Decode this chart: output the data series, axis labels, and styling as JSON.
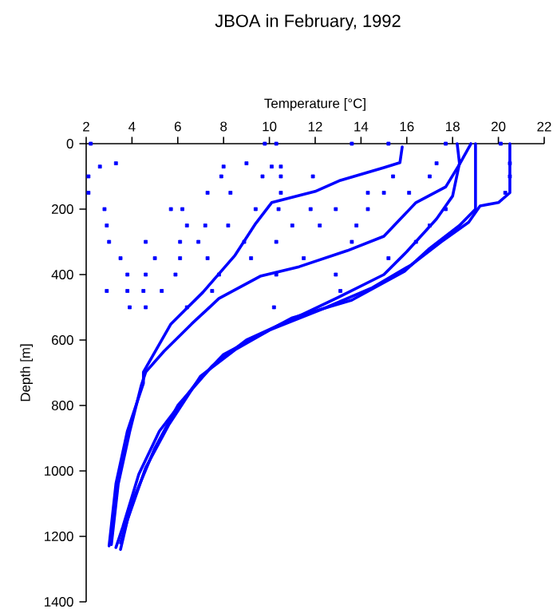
{
  "chart_data": {
    "type": "line",
    "title": "JBOA in February, 1992",
    "xlabel": "Temperature [°C]",
    "ylabel": "Depth [m]",
    "xlim": [
      2,
      22
    ],
    "xticks": [
      2,
      4,
      6,
      8,
      10,
      12,
      14,
      16,
      18,
      20,
      22
    ],
    "ylim": [
      1400,
      0
    ],
    "yticks": [
      0,
      200,
      400,
      600,
      800,
      1000,
      1200,
      1400
    ],
    "series": [
      {
        "color": "#0000ff",
        "x": [
          15.8,
          15.7,
          15.0,
          13.1,
          12.0,
          10.1,
          9.4,
          8.5,
          7.1,
          5.7,
          4.5,
          4.5,
          3.8,
          3.3,
          3.0
        ],
        "values": [
          10,
          58,
          73,
          112,
          146,
          180,
          244,
          341,
          454,
          551,
          698,
          732,
          878,
          1039,
          1229
        ]
      },
      {
        "color": "#0000ff",
        "x": [
          18.8,
          18.3,
          17.7,
          16.4,
          15.0,
          13.4,
          11.3,
          9.6,
          7.8,
          6.6,
          5.4,
          4.6,
          4.4,
          3.9,
          3.4,
          3.1
        ],
        "values": [
          0,
          63,
          132,
          180,
          283,
          327,
          376,
          405,
          473,
          551,
          634,
          698,
          740,
          880,
          1040,
          1225
        ]
      },
      {
        "color": "#0000ff",
        "x": [
          19.0,
          19.0,
          18.3,
          17.0,
          15.9,
          13.6,
          11.0,
          8.0,
          6.8,
          5.2,
          4.3,
          3.6,
          3.3
        ],
        "values": [
          0,
          200,
          250,
          320,
          390,
          478,
          532,
          644,
          732,
          878,
          1010,
          1171,
          1234
        ]
      },
      {
        "color": "#0000ff",
        "x": [
          20.5,
          20.5,
          20.0,
          19.2,
          18.7,
          17.5,
          16.2,
          14.5,
          12.5,
          10.0,
          8.5,
          7.0,
          5.6,
          4.6,
          3.8,
          3.5
        ],
        "values": [
          0,
          150,
          180,
          190,
          240,
          300,
          370,
          440,
          500,
          570,
          630,
          710,
          860,
          990,
          1150,
          1240
        ]
      },
      {
        "color": "#0000ff",
        "x": [
          18.2,
          18.3,
          18.0,
          17.3,
          16.0,
          15.0,
          13.0,
          11.5,
          9.0,
          7.5,
          6.0,
          5.0,
          4.1,
          3.5
        ],
        "values": [
          0,
          60,
          160,
          230,
          330,
          400,
          470,
          520,
          600,
          680,
          800,
          930,
          1080,
          1220
        ]
      },
      {
        "type": "scatter",
        "marker": "square",
        "color": "#0000ff",
        "x": [
          2.2,
          9.8,
          10.3,
          13.6,
          15.2,
          17.7,
          20.1,
          2.6,
          3.3,
          8.0,
          9.0,
          10.1,
          10.5,
          17.3,
          20.5,
          2.1,
          7.9,
          9.7,
          10.5,
          11.9,
          15.4,
          17.0,
          20.5,
          2.1,
          7.3,
          8.3,
          10.5,
          14.3,
          15.0,
          16.1,
          20.3,
          2.8,
          5.7,
          6.2,
          9.4,
          10.4,
          11.8,
          12.9,
          14.3,
          17.7,
          2.9,
          6.4,
          7.2,
          8.2,
          11.0,
          12.2,
          13.8,
          17.0,
          3.0,
          4.6,
          6.1,
          6.9,
          8.9,
          10.3,
          13.6,
          16.4,
          3.5,
          5.0,
          6.1,
          7.3,
          9.2,
          11.5,
          15.2,
          3.8,
          4.6,
          5.9,
          7.8,
          10.3,
          12.9,
          2.9,
          3.8,
          4.5,
          5.3,
          7.5,
          13.1,
          3.9,
          4.6,
          6.4,
          10.2
        ],
        "values": [
          0,
          0,
          0,
          0,
          0,
          0,
          0,
          70,
          60,
          70,
          60,
          70,
          70,
          60,
          60,
          100,
          100,
          100,
          100,
          100,
          100,
          100,
          100,
          150,
          150,
          150,
          150,
          150,
          150,
          150,
          150,
          200,
          200,
          200,
          200,
          200,
          200,
          200,
          200,
          200,
          250,
          250,
          250,
          250,
          250,
          250,
          250,
          250,
          300,
          300,
          300,
          300,
          300,
          300,
          300,
          300,
          350,
          350,
          350,
          350,
          350,
          350,
          350,
          400,
          400,
          400,
          400,
          400,
          400,
          450,
          450,
          450,
          450,
          450,
          450,
          500,
          500,
          500,
          500
        ]
      }
    ]
  }
}
